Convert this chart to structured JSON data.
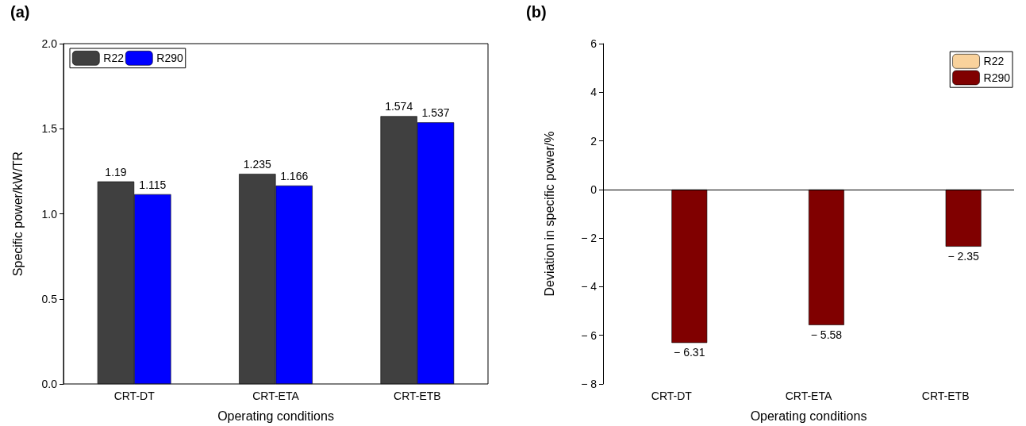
{
  "chart_data": [
    {
      "type": "bar",
      "title": "(a)",
      "xlabel": "Operating conditions",
      "ylabel": "Specific power/kW/TR",
      "categories": [
        "CRT-DT",
        "CRT-ETA",
        "CRT-ETB"
      ],
      "series": [
        {
          "name": "R22",
          "color": "#404040",
          "values": [
            1.19,
            1.235,
            1.574
          ]
        },
        {
          "name": "R290",
          "color": "#0000ff",
          "values": [
            1.115,
            1.166,
            1.537
          ]
        }
      ],
      "ylim": [
        0,
        2
      ],
      "yticks": [
        {
          "value": 0,
          "label": "0.0"
        },
        {
          "value": 0.5,
          "label": "0.5"
        },
        {
          "value": 1,
          "label": "1.0"
        },
        {
          "value": 1.5,
          "label": "1.5"
        },
        {
          "value": 2,
          "label": "2.0"
        }
      ],
      "data_labels": true,
      "legend": "top left",
      "grid": false
    },
    {
      "type": "bar",
      "title": "(b)",
      "xlabel": "Operating conditions",
      "ylabel": "Deviation in specific power/%",
      "categories": [
        "CRT-DT",
        "CRT-ETA",
        "CRT-ETB"
      ],
      "series": [
        {
          "name": "R22",
          "color": "#f9d29c",
          "values": [
            null,
            null,
            null
          ]
        },
        {
          "name": "R290",
          "color": "#800000",
          "values": [
            -6.31,
            -5.58,
            -2.35
          ],
          "value_labels": [
            "− 6.31",
            "− 5.58",
            "− 2.35"
          ]
        }
      ],
      "ylim": [
        -8,
        6
      ],
      "yticks": [
        {
          "value": -8,
          "label": "− 8"
        },
        {
          "value": -6,
          "label": "− 6"
        },
        {
          "value": -4,
          "label": "− 4"
        },
        {
          "value": -2,
          "label": "− 2"
        },
        0,
        2,
        4,
        6
      ],
      "ref_lines": [
        {
          "axis": "y",
          "value": 0,
          "color": "#000000"
        }
      ],
      "legend": "top right",
      "grid": false
    }
  ]
}
